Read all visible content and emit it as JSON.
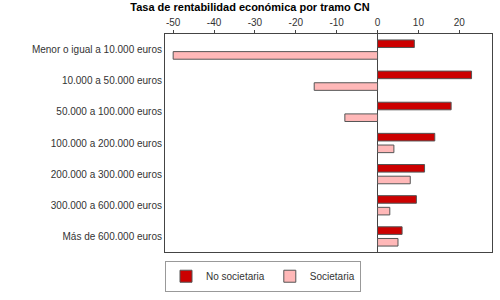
{
  "chart_data": {
    "type": "bar",
    "orientation": "horizontal",
    "title": "Tasa de rentabilidad económica por tramo CN",
    "categories": [
      "Menor o igual a 10.000 euros",
      "10.000 a 50.000 euros",
      "50.000 a 100.000 euros",
      "100.000 a 200.000 euros",
      "200.000 a 300.000 euros",
      "300.000 a 600.000 euros",
      "Más de 600.000 euros"
    ],
    "series": [
      {
        "name": "No societaria",
        "color": "#cc0000",
        "values": [
          9,
          23,
          18,
          14,
          11.5,
          9.5,
          6
        ]
      },
      {
        "name": "Societaria",
        "color": "#ffb8b8",
        "values": [
          -50,
          -15.5,
          -8,
          4,
          8,
          3,
          5
        ]
      }
    ],
    "xlim": [
      -52,
      28
    ],
    "xticks": [
      -50,
      -40,
      -30,
      -20,
      -10,
      0,
      10,
      20
    ],
    "grid": false,
    "legend": "bottom"
  }
}
